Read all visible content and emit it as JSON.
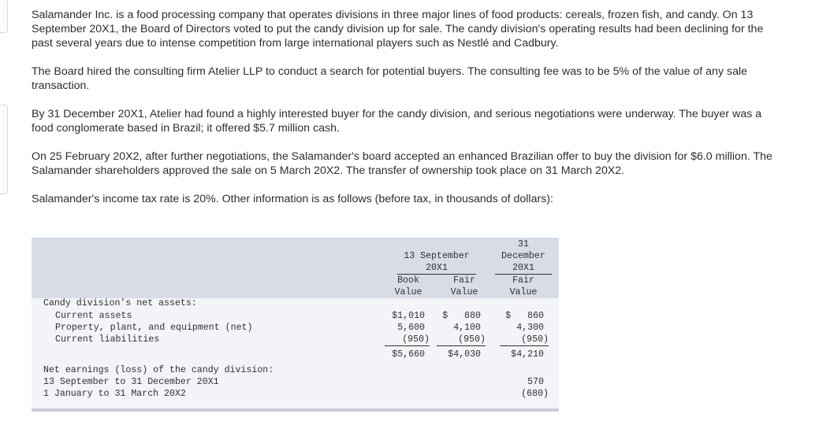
{
  "paragraphs": [
    "Salamander Inc. is a food processing company that operates divisions in three major lines of food products: cereals, frozen fish, and candy. On 13 September 20X1, the Board of Directors voted to put the candy division up for sale. The candy division's operating results had been declining for the past several years due to intense competition from large international players such as Nestlé and Cadbury.",
    "The Board hired the consulting firm Atelier LLP to conduct a search for potential buyers. The consulting fee was to be 5% of the value of any sale transaction.",
    "By 31 December 20X1, Atelier had found a highly interested buyer for the candy division, and serious negotiations were underway. The buyer was a food conglomerate based in Brazil; it offered $5.7 million cash.",
    "On 25 February 20X2, after further negotiations, the Salamander's board accepted an enhanced Brazilian offer to buy the division for $6.0 million. The Salamander shareholders approved the sale on 5 March 20X2. The transfer of ownership took place on 31 March 20X2.",
    "Salamander's income tax rate is 20%. Other information is as follows (before tax, in thousands of dollars):"
  ],
  "table": {
    "col_group_1": "13 September\n20X1",
    "col_group_2": "31\nDecember\n20X1",
    "col_book": "Book\nValue",
    "col_fair1": "Fair\nValue",
    "col_fair2": "Fair\nValue",
    "section1_label": "Candy division's net assets:",
    "rows": [
      {
        "label": "Current assets",
        "book": "$1,010",
        "fair1": "$   880",
        "fair2": "$   860"
      },
      {
        "label": "Property, plant, and equipment (net)",
        "book": "5,600",
        "fair1": "4,100",
        "fair2": "4,300"
      },
      {
        "label": "Current liabilities",
        "book": "(950)",
        "fair1": "(950)",
        "fair2": "(950)"
      }
    ],
    "totals": {
      "book": "$5,660",
      "fair1": "$4,030",
      "fair2": "$4,210"
    },
    "section2_label": "Net earnings (loss) of the candy division:",
    "earnings": [
      {
        "label": "13 September to 31 December 20X1",
        "value": "570"
      },
      {
        "label": "1 January to 31 March 20X2",
        "value": "(680)"
      }
    ]
  }
}
